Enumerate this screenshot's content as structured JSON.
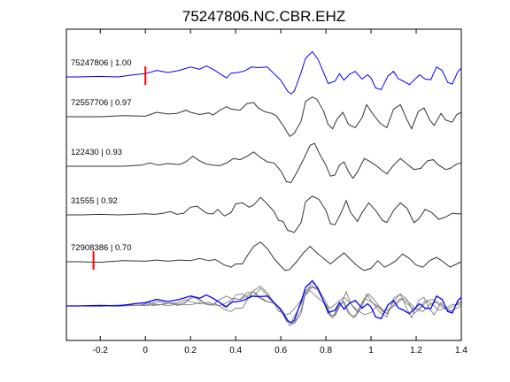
{
  "chart_data": {
    "type": "line",
    "title": "75247806.NC.CBR.EHZ",
    "xlabel": "",
    "ylabel": "",
    "xlim": [
      -0.35,
      1.4
    ],
    "xticks": [
      -0.2,
      0,
      0.2,
      0.4,
      0.6,
      0.8,
      1,
      1.2,
      1.4
    ],
    "xtick_labels": [
      "-0.2",
      "0",
      "0.2",
      "0.4",
      "0.6",
      "0.8",
      "1",
      "1.2",
      "1.4"
    ],
    "grid": false,
    "legend": "none",
    "colors": {
      "reference": "#0000ff",
      "trace": "#333333",
      "pick": "#ff0000",
      "stack_trace": "#7f7f7f",
      "axes": "#000000"
    },
    "traces": [
      {
        "label": "75247806 | 1.00",
        "color": "#0000ff",
        "pick_time": 0.0,
        "points": [
          [
            -0.35,
            0
          ],
          [
            -0.3,
            0
          ],
          [
            -0.2,
            0.1
          ],
          [
            -0.12,
            0
          ],
          [
            -0.05,
            0.4
          ],
          [
            0,
            0.6
          ],
          [
            0.05,
            1.2
          ],
          [
            0.1,
            0.8
          ],
          [
            0.15,
            1.2
          ],
          [
            0.2,
            1.8
          ],
          [
            0.24,
            1.4
          ],
          [
            0.27,
            2.0
          ],
          [
            0.3,
            1.4
          ],
          [
            0.33,
            0.6
          ],
          [
            0.36,
            -0.2
          ],
          [
            0.38,
            0.7
          ],
          [
            0.41,
            0.8
          ],
          [
            0.44,
            1.1
          ],
          [
            0.47,
            1.8
          ],
          [
            0.5,
            1.7
          ],
          [
            0.54,
            1.8
          ],
          [
            0.57,
            0.6
          ],
          [
            0.6,
            -0.6
          ],
          [
            0.63,
            -2.6
          ],
          [
            0.645,
            -3.1
          ],
          [
            0.66,
            -2.6
          ],
          [
            0.69,
            0.8
          ],
          [
            0.71,
            3.4
          ],
          [
            0.74,
            4.6
          ],
          [
            0.765,
            3.2
          ],
          [
            0.79,
            0.8
          ],
          [
            0.81,
            -1.2
          ],
          [
            0.84,
            -0.8
          ],
          [
            0.86,
            0.6
          ],
          [
            0.88,
            -0.6
          ],
          [
            0.905,
            0.5
          ],
          [
            0.93,
            1.0
          ],
          [
            0.96,
            -0.4
          ],
          [
            0.985,
            0.4
          ],
          [
            1.0,
            -0.2
          ],
          [
            1.02,
            -2.0
          ],
          [
            1.045,
            -2.3
          ],
          [
            1.075,
            0.2
          ],
          [
            1.1,
            1.0
          ],
          [
            1.12,
            -0.3
          ],
          [
            1.145,
            -0.8
          ],
          [
            1.17,
            -1.4
          ],
          [
            1.19,
            -0.6
          ],
          [
            1.215,
            0.4
          ],
          [
            1.24,
            -0.4
          ],
          [
            1.265,
            -0.5
          ],
          [
            1.29,
            1.8
          ],
          [
            1.315,
            1.2
          ],
          [
            1.34,
            -1.0
          ],
          [
            1.36,
            -1.3
          ],
          [
            1.385,
            1.0
          ],
          [
            1.4,
            1.6
          ]
        ]
      },
      {
        "label": "72557706 | 0.97",
        "color": "#333333",
        "points": [
          [
            -0.35,
            0
          ],
          [
            -0.2,
            0
          ],
          [
            -0.1,
            0.2
          ],
          [
            0,
            0.1
          ],
          [
            0.05,
            0.8
          ],
          [
            0.1,
            0.5
          ],
          [
            0.14,
            0.6
          ],
          [
            0.18,
            1.2
          ],
          [
            0.2,
            0.8
          ],
          [
            0.24,
            0.4
          ],
          [
            0.28,
            0.7
          ],
          [
            0.3,
            0.3
          ],
          [
            0.33,
            1.2
          ],
          [
            0.36,
            1.8
          ],
          [
            0.38,
            1.4
          ],
          [
            0.42,
            1.2
          ],
          [
            0.45,
            2.4
          ],
          [
            0.48,
            2.6
          ],
          [
            0.5,
            1.6
          ],
          [
            0.53,
            0.9
          ],
          [
            0.56,
            0.6
          ],
          [
            0.58,
            0.2
          ],
          [
            0.61,
            -1.6
          ],
          [
            0.64,
            -3.6
          ],
          [
            0.66,
            -3.0
          ],
          [
            0.69,
            -0.8
          ],
          [
            0.71,
            2.8
          ],
          [
            0.74,
            3.6
          ],
          [
            0.76,
            3.2
          ],
          [
            0.79,
            1.0
          ],
          [
            0.81,
            -1.4
          ],
          [
            0.83,
            -2.2
          ],
          [
            0.85,
            -0.4
          ],
          [
            0.875,
            0.8
          ],
          [
            0.9,
            -1.4
          ],
          [
            0.93,
            -2.0
          ],
          [
            0.96,
            -0.2
          ],
          [
            0.98,
            2.2
          ],
          [
            1.01,
            0.4
          ],
          [
            1.04,
            -1.2
          ],
          [
            1.07,
            -2.0
          ],
          [
            1.1,
            1.4
          ],
          [
            1.13,
            2.2
          ],
          [
            1.16,
            -0.6
          ],
          [
            1.18,
            -2.2
          ],
          [
            1.21,
            1.0
          ],
          [
            1.235,
            1.6
          ],
          [
            1.26,
            -0.6
          ],
          [
            1.28,
            -1.6
          ],
          [
            1.31,
            0.6
          ],
          [
            1.33,
            -0.6
          ],
          [
            1.36,
            -1.0
          ],
          [
            1.38,
            0.4
          ],
          [
            1.4,
            0.8
          ]
        ]
      },
      {
        "label": "122430 | 0.93",
        "color": "#333333",
        "points": [
          [
            -0.35,
            0
          ],
          [
            -0.25,
            0
          ],
          [
            -0.1,
            0
          ],
          [
            -0.02,
            0.2
          ],
          [
            0.02,
            0.6
          ],
          [
            0.06,
            0.2
          ],
          [
            0.1,
            0.5
          ],
          [
            0.15,
            0.3
          ],
          [
            0.18,
            0.8
          ],
          [
            0.21,
            1.8
          ],
          [
            0.24,
            1.0
          ],
          [
            0.27,
            0.4
          ],
          [
            0.3,
            0.2
          ],
          [
            0.33,
            0.1
          ],
          [
            0.36,
            0.6
          ],
          [
            0.39,
            1.4
          ],
          [
            0.42,
            1.2
          ],
          [
            0.45,
            1.8
          ],
          [
            0.48,
            2.6
          ],
          [
            0.51,
            1.6
          ],
          [
            0.54,
            0.8
          ],
          [
            0.57,
            0.6
          ],
          [
            0.6,
            -0.8
          ],
          [
            0.625,
            -2.8
          ],
          [
            0.645,
            -3.0
          ],
          [
            0.67,
            -1.2
          ],
          [
            0.7,
            1.2
          ],
          [
            0.73,
            3.8
          ],
          [
            0.75,
            4.2
          ],
          [
            0.77,
            2.4
          ],
          [
            0.8,
            0.2
          ],
          [
            0.82,
            -1.8
          ],
          [
            0.84,
            -1.6
          ],
          [
            0.86,
            0.2
          ],
          [
            0.88,
            0.8
          ],
          [
            0.9,
            -1.0
          ],
          [
            0.92,
            -2.2
          ],
          [
            0.94,
            -1.0
          ],
          [
            0.97,
            1.4
          ],
          [
            0.99,
            1.0
          ],
          [
            1.02,
            0.2
          ],
          [
            1.05,
            -0.8
          ],
          [
            1.07,
            -1.4
          ],
          [
            1.1,
            0.2
          ],
          [
            1.13,
            1.4
          ],
          [
            1.16,
            0.4
          ],
          [
            1.19,
            -0.6
          ],
          [
            1.22,
            -0.4
          ],
          [
            1.25,
            1.0
          ],
          [
            1.275,
            1.2
          ],
          [
            1.3,
            0.2
          ],
          [
            1.33,
            -0.6
          ],
          [
            1.35,
            -0.4
          ],
          [
            1.38,
            0.4
          ],
          [
            1.4,
            0.6
          ]
        ]
      },
      {
        "label": "31555 | 0.92",
        "color": "#333333",
        "points": [
          [
            -0.35,
            0
          ],
          [
            -0.28,
            0
          ],
          [
            -0.2,
            0.1
          ],
          [
            -0.12,
            0
          ],
          [
            -0.05,
            0.1
          ],
          [
            0,
            0.2
          ],
          [
            0.04,
            0.1
          ],
          [
            0.08,
            0.3
          ],
          [
            0.11,
            0.6
          ],
          [
            0.14,
            0.1
          ],
          [
            0.17,
            0.3
          ],
          [
            0.2,
            1.4
          ],
          [
            0.23,
            1.6
          ],
          [
            0.26,
            0.6
          ],
          [
            0.28,
            0.2
          ],
          [
            0.3,
            0.2
          ],
          [
            0.32,
            1.0
          ],
          [
            0.35,
            -0.2
          ],
          [
            0.38,
            0.4
          ],
          [
            0.4,
            2.0
          ],
          [
            0.43,
            2.2
          ],
          [
            0.46,
            1.4
          ],
          [
            0.48,
            1.8
          ],
          [
            0.51,
            3.2
          ],
          [
            0.54,
            2.0
          ],
          [
            0.57,
            0.6
          ],
          [
            0.59,
            -1.0
          ],
          [
            0.61,
            -1.2
          ],
          [
            0.63,
            -2.8
          ],
          [
            0.66,
            -3.2
          ],
          [
            0.69,
            -1.4
          ],
          [
            0.71,
            2.4
          ],
          [
            0.74,
            3.4
          ],
          [
            0.77,
            2.8
          ],
          [
            0.8,
            0.8
          ],
          [
            0.82,
            -1.6
          ],
          [
            0.84,
            -1.8
          ],
          [
            0.87,
            0.6
          ],
          [
            0.89,
            2.6
          ],
          [
            0.91,
            0.4
          ],
          [
            0.94,
            -1.2
          ],
          [
            0.96,
            0.4
          ],
          [
            0.99,
            2.2
          ],
          [
            1.02,
            0.8
          ],
          [
            1.05,
            -1.0
          ],
          [
            1.07,
            -1.4
          ],
          [
            1.1,
            0.8
          ],
          [
            1.13,
            2.2
          ],
          [
            1.16,
            1.2
          ],
          [
            1.19,
            -1.4
          ],
          [
            1.21,
            -0.8
          ],
          [
            1.24,
            1.0
          ],
          [
            1.27,
            0.4
          ],
          [
            1.3,
            -0.8
          ],
          [
            1.33,
            -0.4
          ],
          [
            1.36,
            0.3
          ],
          [
            1.38,
            0.2
          ],
          [
            1.4,
            0.2
          ]
        ]
      },
      {
        "label": "72908386 | 0.70",
        "color": "#333333",
        "pick_time": -0.23,
        "points": [
          [
            -0.35,
            0
          ],
          [
            -0.3,
            0
          ],
          [
            -0.2,
            -0.1
          ],
          [
            -0.1,
            0.2
          ],
          [
            0,
            0.1
          ],
          [
            0.05,
            0.3
          ],
          [
            0.1,
            0.1
          ],
          [
            0.15,
            0.3
          ],
          [
            0.2,
            0.2
          ],
          [
            0.24,
            0.6
          ],
          [
            0.28,
            0.2
          ],
          [
            0.31,
            0.4
          ],
          [
            0.35,
            -0.6
          ],
          [
            0.38,
            -1.0
          ],
          [
            0.4,
            -0.4
          ],
          [
            0.43,
            -0.4
          ],
          [
            0.45,
            1.0
          ],
          [
            0.48,
            2.8
          ],
          [
            0.51,
            3.6
          ],
          [
            0.54,
            2.4
          ],
          [
            0.57,
            0.6
          ],
          [
            0.6,
            -0.8
          ],
          [
            0.62,
            -1.6
          ],
          [
            0.64,
            -1.4
          ],
          [
            0.67,
            0.0
          ],
          [
            0.7,
            1.6
          ],
          [
            0.73,
            2.8
          ],
          [
            0.76,
            1.6
          ],
          [
            0.79,
            0.6
          ],
          [
            0.82,
            -0.4
          ],
          [
            0.85,
            0.6
          ],
          [
            0.88,
            1.6
          ],
          [
            0.91,
            0.4
          ],
          [
            0.94,
            -0.8
          ],
          [
            0.97,
            -1.6
          ],
          [
            1.0,
            -1.2
          ],
          [
            1.03,
            0.2
          ],
          [
            1.06,
            -1.0
          ],
          [
            1.08,
            -0.6
          ],
          [
            1.11,
            0.2
          ],
          [
            1.14,
            1.4
          ],
          [
            1.17,
            0.6
          ],
          [
            1.2,
            -0.6
          ],
          [
            1.23,
            -1.0
          ],
          [
            1.26,
            0.2
          ],
          [
            1.29,
            0.8
          ],
          [
            1.32,
            0.0
          ],
          [
            1.35,
            -1.0
          ],
          [
            1.38,
            -0.4
          ],
          [
            1.4,
            0.0
          ]
        ]
      }
    ],
    "stack": {
      "description_reference_series": 0,
      "overlay_series": [
        1,
        2,
        3,
        4
      ]
    }
  }
}
